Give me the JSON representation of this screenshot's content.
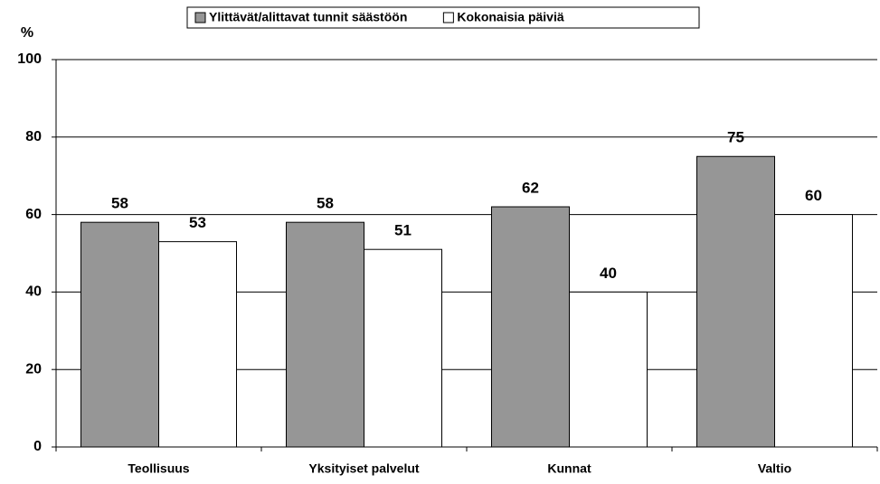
{
  "chart_data": {
    "type": "bar",
    "ylabel": "%",
    "categories": [
      "Teollisuus",
      "Yksityiset palvelut",
      "Kunnat",
      "Valtio"
    ],
    "series": [
      {
        "name": "Ylittävät/alittavat tunnit säästöön",
        "color": "#969696",
        "values": [
          58,
          58,
          62,
          75
        ]
      },
      {
        "name": "Kokonaisia päiviä",
        "color": "#ffffff",
        "values": [
          53,
          51,
          40,
          60
        ]
      }
    ],
    "ylim": [
      0,
      100
    ],
    "yticks": [
      0,
      20,
      40,
      60,
      80,
      100
    ],
    "grid": true,
    "legend": "top"
  }
}
